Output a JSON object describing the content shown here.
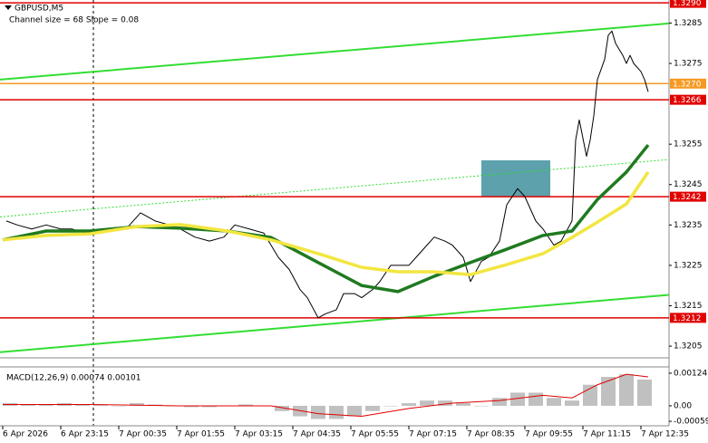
{
  "chart_data": [
    {
      "type": "line",
      "title": "GBPUSD,M5",
      "subtitle": "Channel size = 68 Slope = 0.08",
      "xlim": [
        -0.75,
        183.75
      ],
      "xticks": [
        {
          "value": 0,
          "label": "6 Apr 2026"
        },
        {
          "value": 16,
          "label": "6 Apr 23:15"
        },
        {
          "value": 32,
          "label": "7 Apr 00:35"
        },
        {
          "value": 48,
          "label": "7 Apr 01:55"
        },
        {
          "value": 64,
          "label": "7 Apr 03:15"
        },
        {
          "value": 80,
          "label": "7 Apr 04:35"
        },
        {
          "value": 96,
          "label": "7 Apr 05:55"
        },
        {
          "value": 112,
          "label": "7 Apr 07:15"
        },
        {
          "value": 128,
          "label": "7 Apr 08:35"
        },
        {
          "value": 144,
          "label": "7 Apr 09:55"
        },
        {
          "value": 160,
          "label": "7 Apr 11:15"
        },
        {
          "value": 176,
          "label": "7 Apr 12:35"
        }
      ],
      "ylim": [
        1.32021,
        1.32907
      ],
      "yticks": [
        1.3285,
        1.3275,
        1.3255,
        1.3245,
        1.3235,
        1.3225,
        1.3215,
        1.3205
      ],
      "series": [
        {
          "color": "#000000",
          "width": 1,
          "x": [
            1,
            4,
            8,
            12,
            16,
            19,
            23,
            27,
            31,
            34,
            38,
            42,
            46,
            49,
            53,
            57,
            61,
            64,
            68,
            72,
            76,
            79,
            82,
            84,
            87,
            89,
            92,
            94,
            97,
            99,
            102,
            104,
            107,
            109,
            112,
            114,
            117,
            119,
            122,
            124,
            127,
            129,
            132,
            134,
            137,
            139,
            142,
            144,
            147,
            149,
            152,
            154,
            157,
            158,
            159,
            161,
            162,
            163,
            164,
            166,
            167,
            168,
            169,
            171,
            172,
            173,
            174,
            176,
            177,
            178
          ],
          "values": [
            1.3236,
            1.3235,
            1.3234,
            1.3235,
            1.3234,
            1.3234,
            1.3233,
            1.3234,
            1.3234,
            1.3234,
            1.3238,
            1.3236,
            1.3235,
            1.3234,
            1.3232,
            1.3231,
            1.3232,
            1.3235,
            1.3234,
            1.3233,
            1.3227,
            1.3224,
            1.3219,
            1.3217,
            1.3212,
            1.3213,
            1.3214,
            1.3218,
            1.3218,
            1.3217,
            1.3219,
            1.3221,
            1.3225,
            1.3225,
            1.3225,
            1.3227,
            1.323,
            1.3232,
            1.3231,
            1.323,
            1.3227,
            1.3221,
            1.3226,
            1.3227,
            1.3231,
            1.324,
            1.3244,
            1.3242,
            1.3236,
            1.3234,
            1.323,
            1.3231,
            1.3236,
            1.3256,
            1.3261,
            1.3252,
            1.3256,
            1.3262,
            1.3271,
            1.3276,
            1.3282,
            1.3283,
            1.328,
            1.3277,
            1.3275,
            1.3277,
            1.3275,
            1.3273,
            1.3271,
            1.3268
          ]
        },
        {
          "color": "#1f7a1f",
          "width": 3.5,
          "x": [
            0,
            12,
            24,
            37,
            49,
            62,
            74,
            87,
            99,
            109,
            119,
            129,
            139,
            149,
            157,
            164,
            172,
            178
          ],
          "values": [
            1.32313,
            1.32335,
            1.32335,
            1.32346,
            1.32342,
            1.32335,
            1.32319,
            1.32257,
            1.322,
            1.32185,
            1.32223,
            1.32257,
            1.3229,
            1.32324,
            1.32335,
            1.32413,
            1.32481,
            1.32548
          ]
        },
        {
          "color": "#f2e640",
          "width": 3.5,
          "x": [
            0,
            12,
            24,
            37,
            49,
            62,
            74,
            87,
            99,
            109,
            119,
            129,
            139,
            149,
            157,
            164,
            172,
            178
          ],
          "values": [
            1.32313,
            1.32324,
            1.32328,
            1.32346,
            1.32351,
            1.32335,
            1.32313,
            1.32279,
            1.32245,
            1.32234,
            1.32234,
            1.32227,
            1.32252,
            1.32279,
            1.32319,
            1.32357,
            1.32402,
            1.32481
          ]
        }
      ],
      "channel_x": [
        -0.75,
        183.75
      ],
      "channels": [
        {
          "values": [
            1.3271,
            1.32849
          ],
          "color": "#33dd33",
          "dashed": false
        },
        {
          "values": [
            1.3237,
            1.32512
          ],
          "color": "#33dd33",
          "dashed": true
        },
        {
          "values": [
            1.32035,
            1.32177
          ],
          "color": "#33dd33",
          "dashed": false
        }
      ],
      "zone": {
        "x": [
          132,
          151
        ],
        "y": [
          1.3242,
          1.3251
        ],
        "color": "#4a97a3"
      },
      "levels": [
        {
          "value": 1.329,
          "label": "1.3290",
          "color": "#e00000"
        },
        {
          "value": 1.327,
          "label": "1.3270",
          "color": "#f59a23"
        },
        {
          "value": 1.3266,
          "label": "1.3266",
          "color": "#e00000"
        },
        {
          "value": 1.3242,
          "label": "1.3242",
          "color": "#e00000"
        },
        {
          "value": 1.3212,
          "label": "1.3212",
          "color": "#e00000"
        }
      ]
    },
    {
      "type": "bar",
      "title": "MACD(12,26,9) 0.00074 0.00101",
      "xlim": [
        -0.75,
        183.75
      ],
      "ylim": [
        -0.00076,
        0.00148
      ],
      "yticks": [
        0.00124,
        {
          "value": 0,
          "label": "0.00"
        },
        -0.00059
      ],
      "series": [
        {
          "type": "bar",
          "color": "#c0c0c0",
          "x": [
            2,
            7,
            12,
            17,
            22,
            27,
            32,
            37,
            42,
            47,
            52,
            57,
            62,
            67,
            72,
            77,
            82,
            87,
            92,
            97,
            102,
            107,
            112,
            117,
            122,
            127,
            132,
            137,
            142,
            147,
            152,
            157,
            162,
            167,
            172,
            177
          ],
          "values": [
            0.0001,
            5e-05,
            5e-05,
            0.0001,
            5e-05,
            5e-05,
            0,
            0.0001,
            5e-05,
            0,
            -5e-05,
            -5e-05,
            0,
            5e-05,
            0,
            -0.0002,
            -0.0004,
            -0.0005,
            -0.0005,
            -0.0004,
            -0.0002,
            0,
            0.0001,
            0.0002,
            0.0002,
            0.0001,
            0,
            0.0003,
            0.0005,
            0.0005,
            0.0003,
            0.0002,
            0.0008,
            0.0011,
            0.0012,
            0.001
          ]
        },
        {
          "type": "line",
          "color": "#e00000",
          "x": [
            0,
            24,
            49,
            74,
            87,
            99,
            112,
            124,
            137,
            149,
            157,
            164,
            172,
            178
          ],
          "values": [
            5e-05,
            5e-05,
            0,
            0,
            -0.0003,
            -0.0004,
            -0.0001,
            0.0001,
            0.0002,
            0.0004,
            0.0003,
            0.0008,
            0.0012,
            0.0011
          ]
        }
      ]
    }
  ]
}
